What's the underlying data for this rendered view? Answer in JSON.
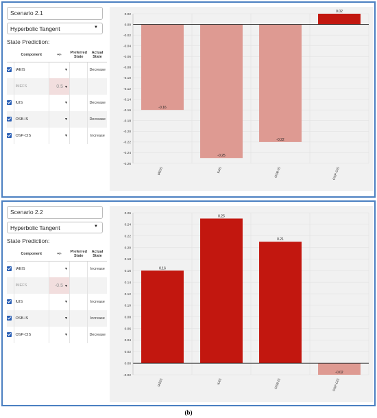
{
  "scenarios": [
    {
      "name": "Scenario 2.1",
      "function": "Hyperbolic Tangent",
      "state_prediction_label": "State Prediction:",
      "headers": {
        "component": "Component",
        "plusminus": "+/-",
        "preferred": "Preferred State",
        "actual": "Actual State"
      },
      "rows": [
        {
          "checked": true,
          "component": "IAEIS",
          "value": "",
          "actual": "Decrease"
        },
        {
          "checked": false,
          "component": "IMEFS",
          "value": "0.5",
          "actual": ""
        },
        {
          "checked": true,
          "component": "IUIS",
          "value": "",
          "actual": "Decrease"
        },
        {
          "checked": true,
          "component": "OSB-IS",
          "value": "",
          "actual": "Decrease"
        },
        {
          "checked": true,
          "component": "OSP-CIS",
          "value": "",
          "actual": "Increase"
        }
      ],
      "chart_data": {
        "type": "bar",
        "categories": [
          "IAEIS",
          "IUIS",
          "OSB-IS",
          "OSP-CIS"
        ],
        "values": [
          -0.16,
          -0.25,
          -0.22,
          0.02
        ],
        "labels": [
          "-0.16",
          "-0.25",
          "-0.22",
          "0.02"
        ],
        "ylim": [
          -0.26,
          0.02
        ],
        "yticks": [
          "0.02",
          "0.00",
          "-0.02",
          "-0.04",
          "-0.06",
          "-0.08",
          "-0.10",
          "-0.12",
          "-0.14",
          "-0.16",
          "-0.18",
          "-0.20",
          "-0.22",
          "-0.24",
          "-0.26"
        ],
        "negative_color": "#de9a92",
        "positive_color": "#c2170f",
        "grid": true
      }
    },
    {
      "name": "Scenario 2.2",
      "function": "Hyperbolic Tangent",
      "state_prediction_label": "State Prediction:",
      "headers": {
        "component": "Component",
        "plusminus": "+/-",
        "preferred": "Preferred State",
        "actual": "Actual State"
      },
      "rows": [
        {
          "checked": true,
          "component": "IAEIS",
          "value": "",
          "actual": "Increase"
        },
        {
          "checked": false,
          "component": "IMEFS",
          "value": "-0.5",
          "actual": ""
        },
        {
          "checked": true,
          "component": "IUIS",
          "value": "",
          "actual": "Increase"
        },
        {
          "checked": true,
          "component": "OSB-IS",
          "value": "",
          "actual": "Increase"
        },
        {
          "checked": true,
          "component": "OSP-CIS",
          "value": "",
          "actual": "Decrease"
        }
      ],
      "chart_data": {
        "type": "bar",
        "categories": [
          "IAEIS",
          "IUIS",
          "OSB-IS",
          "OSP-CIS"
        ],
        "values": [
          0.16,
          0.25,
          0.21,
          -0.02
        ],
        "labels": [
          "0.16",
          "0.25",
          "0.21",
          "-0.02"
        ],
        "ylim": [
          -0.02,
          0.26
        ],
        "yticks": [
          "0.26",
          "0.24",
          "0.22",
          "0.20",
          "0.18",
          "0.16",
          "0.14",
          "0.12",
          "0.10",
          "0.08",
          "0.06",
          "0.04",
          "0.02",
          "0.00",
          "-0.02"
        ],
        "negative_color": "#de9a92",
        "positive_color": "#c2170f",
        "grid": true
      }
    }
  ],
  "caption": "(b)"
}
